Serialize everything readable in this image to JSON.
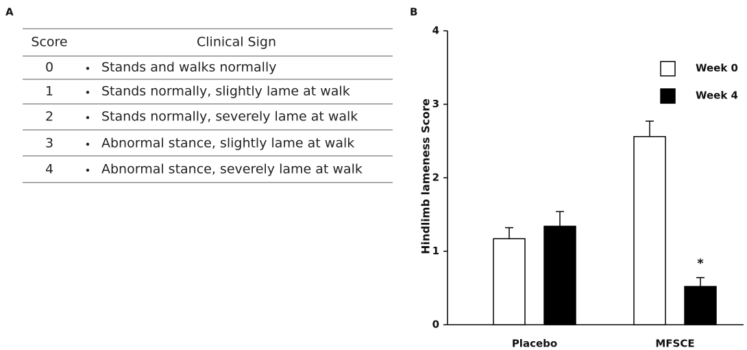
{
  "panel_labels": [
    "A",
    "B"
  ],
  "table": {
    "header": [
      "Score",
      "Clinical Sign"
    ],
    "rows": [
      [
        "0",
        "Stands and walks normally"
      ],
      [
        "1",
        "Stands normally, slightly lame at walk"
      ],
      [
        "2",
        "Stands normally, severely lame at walk"
      ],
      [
        "3",
        "Abnormal stance, slightly lame at walk"
      ],
      [
        "4",
        "Abnormal stance, severely lame at walk"
      ]
    ]
  },
  "chart_data": {
    "type": "bar",
    "ylabel": "Hindlimb lameness Score",
    "categories": [
      "Placebo",
      "MFSCE"
    ],
    "series": [
      {
        "name": "Week 0",
        "color": "#ffffff",
        "values": [
          1.17,
          2.56
        ],
        "errors": [
          0.15,
          0.21
        ]
      },
      {
        "name": "Week 4",
        "color": "#000000",
        "values": [
          1.34,
          0.52
        ],
        "errors": [
          0.2,
          0.12
        ]
      }
    ],
    "annotations": [
      {
        "text": "*",
        "series": 1,
        "index": 1
      }
    ],
    "ylim": [
      0,
      4
    ],
    "yticks": [
      0,
      1,
      2,
      3,
      4
    ],
    "legend": "top-right"
  }
}
